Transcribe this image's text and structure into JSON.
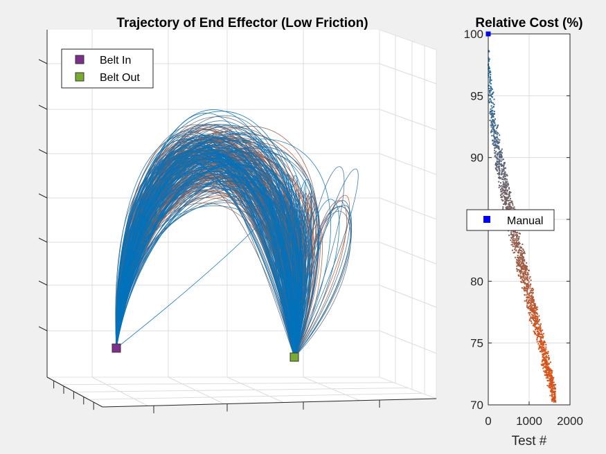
{
  "colors": {
    "figure_bg": "#f0f0f0",
    "blue": "#0072BD",
    "orange": "#D95319",
    "purple": "#7E2F8E",
    "green": "#77AC30",
    "manual": "#0000FF",
    "grid": "#dcdcdc",
    "axis": "#262626"
  },
  "chart_data": [
    {
      "type": "line",
      "projection": "3d",
      "title": "Trajectory of End Effector (Low Friction)",
      "grid": true,
      "legend_position": "top-left",
      "legend": [
        {
          "label": "Belt In",
          "marker": "square",
          "color": "#7E2F8E"
        },
        {
          "label": "Belt Out",
          "marker": "square",
          "color": "#77AC30"
        }
      ],
      "tick_labels_visible": false,
      "series": [
        {
          "color_start": "#0072BD",
          "color_end": "#D95319",
          "trajectory_count": 1600,
          "start": "Belt In",
          "end": "Belt Out"
        }
      ]
    },
    {
      "type": "scatter",
      "title": "Relative Cost (%)",
      "xlabel": "Test #",
      "ylabel": "",
      "xlim": [
        0,
        2000
      ],
      "ylim": [
        70,
        100
      ],
      "xticks": [
        0,
        1000,
        2000
      ],
      "yticks": [
        70,
        75,
        80,
        85,
        90,
        95,
        100
      ],
      "ytick_labels": [
        "70",
        "75",
        "80",
        "",
        "90",
        "95",
        "100"
      ],
      "grid": true,
      "legend_position": "middle",
      "legend": [
        {
          "label": "Manual",
          "marker": "square",
          "color": "#0000FF"
        }
      ],
      "trend": {
        "x_start": 0,
        "y_start": 100,
        "x_end": 1650,
        "y_end": 70.3,
        "spread_percent": 2.5
      },
      "manual_point": {
        "x": 0,
        "y": 100
      },
      "series": [
        {
          "color_start": "#0072BD",
          "color_end": "#D95319",
          "x": [
            0,
            200,
            400,
            600,
            800,
            1000,
            1200,
            1400,
            1600
          ],
          "y": [
            99,
            95,
            89,
            85,
            80,
            76,
            73,
            71.5,
            70.5
          ]
        }
      ]
    }
  ]
}
